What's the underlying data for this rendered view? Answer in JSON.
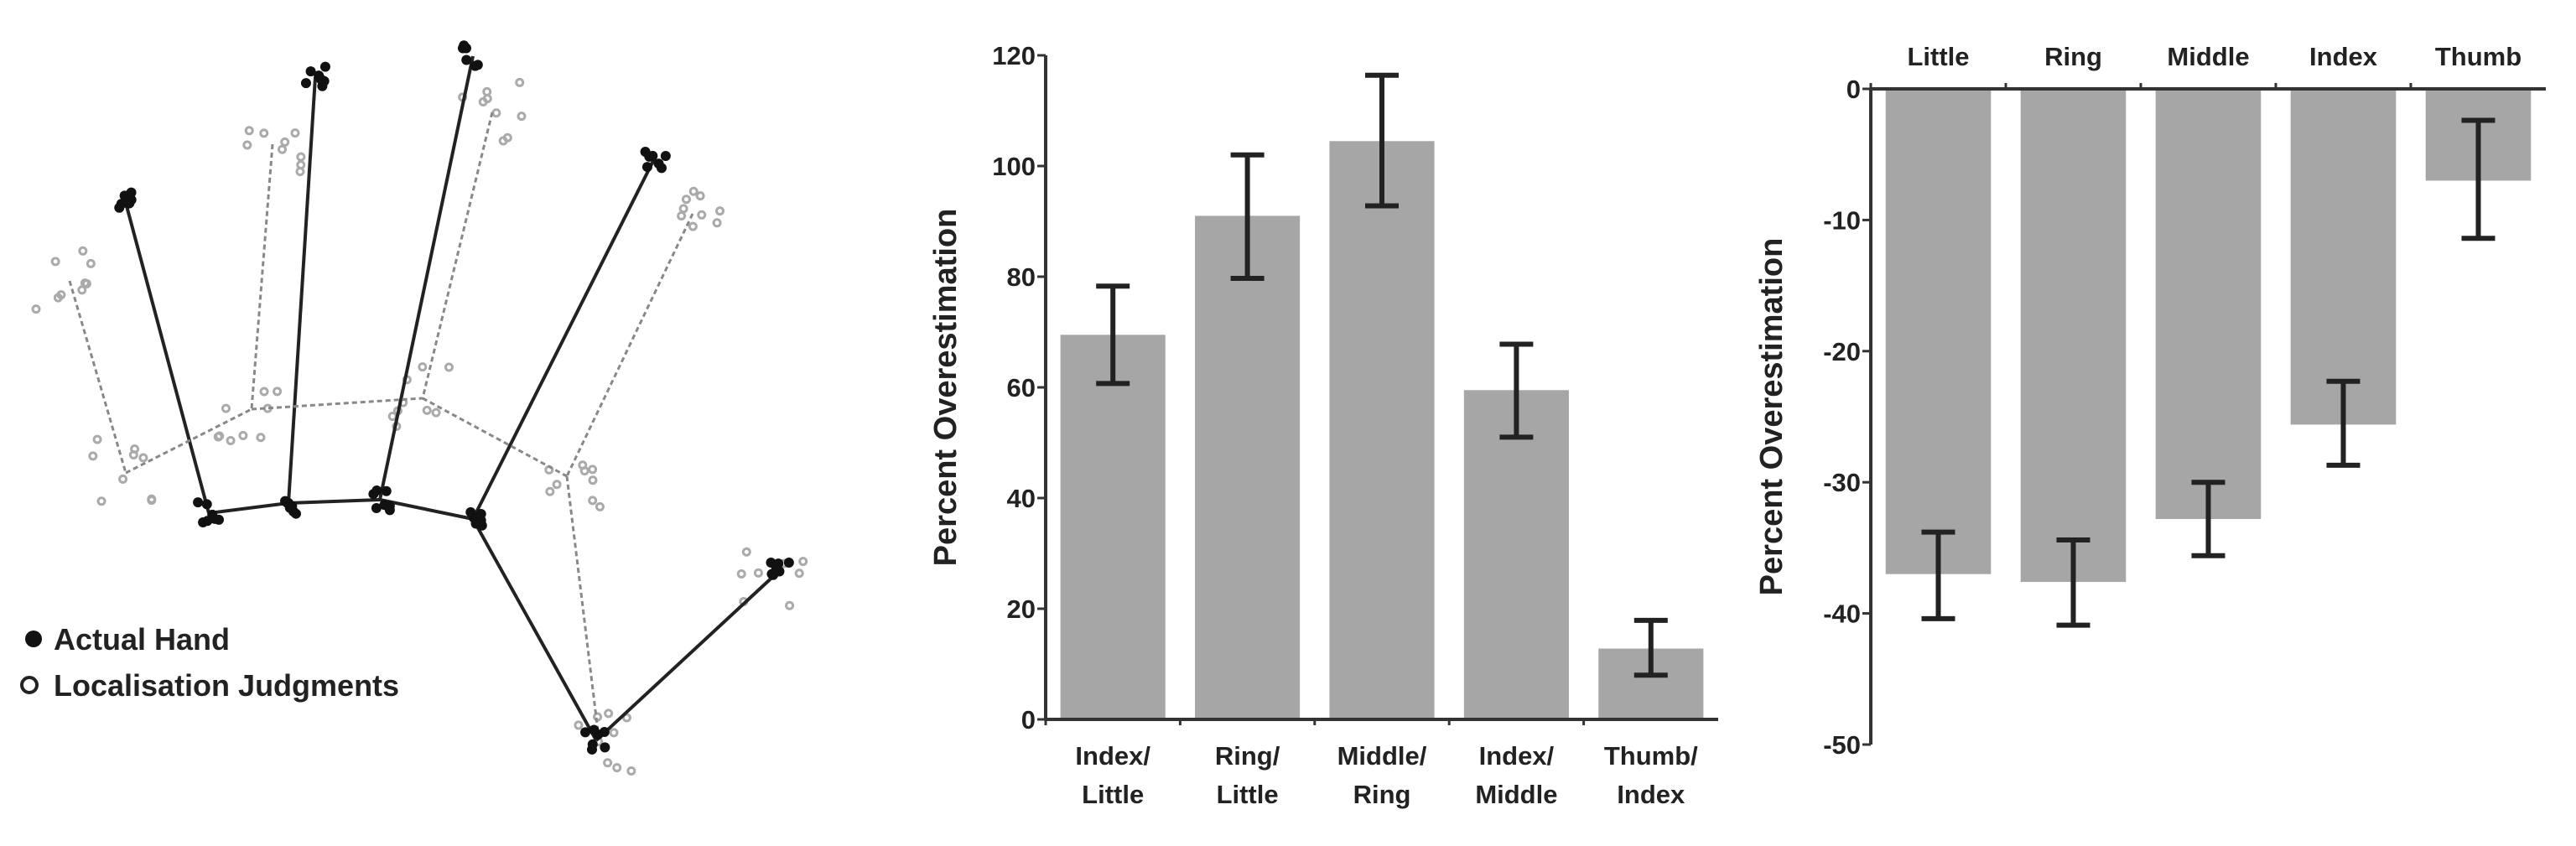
{
  "diagram": {
    "legend": [
      {
        "label": "Actual Hand",
        "marker": "filled-circle"
      },
      {
        "label": "Localisation Judgments",
        "marker": "open-circle"
      }
    ]
  },
  "chart_data": [
    {
      "type": "bar",
      "categories": [
        [
          "Index/",
          "Little"
        ],
        [
          "Ring/",
          "Little"
        ],
        [
          "Middle/",
          "Ring"
        ],
        [
          "Index/",
          "Middle"
        ],
        [
          "Thumb/",
          "Index"
        ]
      ],
      "values": [
        69.5,
        91,
        104.5,
        59.5,
        12.8
      ],
      "error_bars": [
        [
          60.7,
          78.3
        ],
        [
          79.7,
          102
        ],
        [
          92.8,
          116.4
        ],
        [
          51,
          67.8
        ],
        [
          8,
          17.9
        ]
      ],
      "ylabel": "Percent Overestimation",
      "ylim": [
        0,
        120
      ],
      "yticks": [
        "0",
        "20",
        "40",
        "60",
        "80",
        "100",
        "120"
      ],
      "bar_color": "#a6a6a6",
      "grid": false
    },
    {
      "type": "bar",
      "categories": [
        "Little",
        "Ring",
        "Middle",
        "Index",
        "Thumb"
      ],
      "values": [
        -37,
        -37.6,
        -32.8,
        -25.6,
        -7
      ],
      "error_bars": [
        [
          -40.4,
          -33.8
        ],
        [
          -40.9,
          -34.4
        ],
        [
          -35.6,
          -30
        ],
        [
          -28.7,
          -22.3
        ],
        [
          -11.4,
          -2.4
        ]
      ],
      "ylabel": "Percent Overestimation",
      "ylim": [
        -50,
        0
      ],
      "yticks": [
        "0",
        "-10",
        "-20",
        "-30",
        "-40",
        "-50"
      ],
      "category_axis_position": "top",
      "bar_color": "#a6a6a6",
      "grid": false
    }
  ]
}
